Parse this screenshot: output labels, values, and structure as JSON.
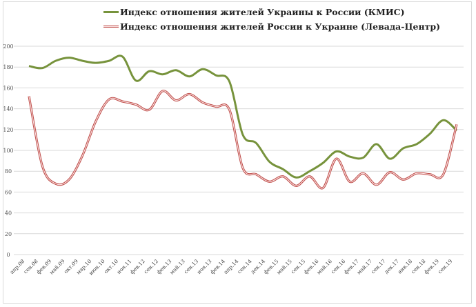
{
  "chart_data": {
    "type": "line",
    "title": "",
    "xlabel": "",
    "ylabel": "",
    "ylim": [
      0,
      200
    ],
    "yticks": [
      0,
      20,
      40,
      60,
      80,
      100,
      120,
      140,
      160,
      180,
      200
    ],
    "grid": true,
    "legend_position": "top-center",
    "categories": [
      "апр.08",
      "сен.08",
      "фев.09",
      "май.09",
      "окт.09",
      "мар.10",
      "июн.10",
      "окт.10",
      "ноя.11",
      "фев.12",
      "сен.12",
      "фев.13",
      "май.13",
      "сен.13",
      "ноя.13",
      "фев.14",
      "апр.14",
      "сен.14",
      "дек.14",
      "фев.15",
      "май.15",
      "сен.15",
      "фев.16",
      "май.16",
      "сен.16",
      "фев.17",
      "май.17",
      "сен.17",
      "дек.17",
      "янв.18",
      "сен.18",
      "фев.19",
      "сен.19"
    ],
    "series": [
      {
        "name": "Индекс отношения жителей Украины к России (КМИС)",
        "color": "#77933c",
        "style": "solid",
        "values": [
          181,
          179,
          186,
          189,
          186,
          184,
          186,
          190,
          167,
          176,
          173,
          177,
          171,
          178,
          172,
          166,
          115,
          107,
          89,
          82,
          74,
          80,
          88,
          99,
          94,
          93,
          106,
          92,
          102,
          106,
          116,
          129,
          119
        ]
      },
      {
        "name": "Индекс отношения жителей России к Украине (Левада-Центр)",
        "color": "#c0504d",
        "style": "double",
        "values": [
          152,
          85,
          68,
          72,
          95,
          128,
          149,
          147,
          144,
          139,
          157,
          148,
          154,
          146,
          142,
          139,
          83,
          77,
          70,
          75,
          66,
          75,
          64,
          92,
          70,
          78,
          67,
          79,
          72,
          78,
          77,
          77,
          125
        ]
      }
    ]
  }
}
